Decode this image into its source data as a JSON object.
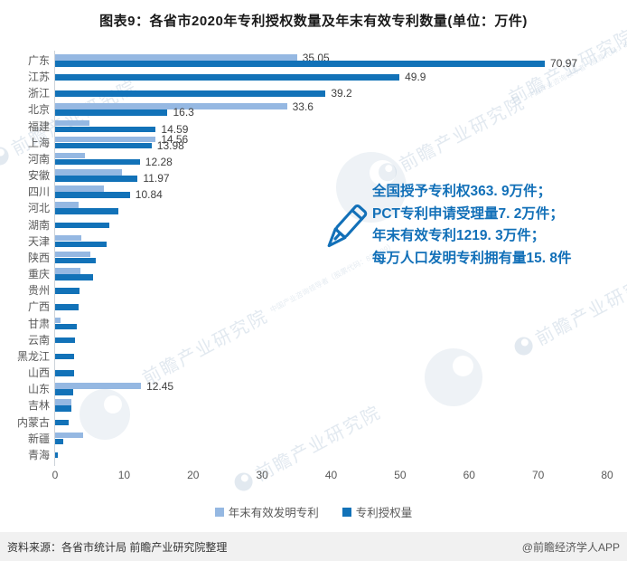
{
  "title": "图表9：各省市2020年专利授权数量及年末有效专利数量(单位：万件)",
  "annotation": {
    "lines": [
      "全国授予专利权363. 9万件；",
      "PCT专利申请受理量7. 2万件；",
      "年末有效专利1219. 3万件；",
      "每万人口发明专利拥有量15. 8件"
    ]
  },
  "legend": [
    {
      "label": "年末有效发明专利",
      "color": "#95b8e2"
    },
    {
      "label": "专利授权量",
      "color": "#1272b8"
    }
  ],
  "footer": {
    "source": "资料来源：各省市统计局 前瞻产业研究院整理",
    "credit": "@前瞻经济学人APP"
  },
  "watermark": {
    "text": "前瞻产业研究院",
    "subtext": "中国产业咨询领导者（股票代码：839599）"
  },
  "chart_data": {
    "type": "bar",
    "orientation": "horizontal",
    "title": "图表9：各省市2020年专利授权数量及年末有效专利数量(单位：万件)",
    "unit": "万件",
    "xlim": [
      0,
      80
    ],
    "xticks": [
      0,
      10,
      20,
      30,
      40,
      50,
      60,
      70,
      80
    ],
    "grid": false,
    "legend_position": "bottom",
    "series": [
      {
        "name": "年末有效发明专利",
        "color": "#95b8e2"
      },
      {
        "name": "专利授权量",
        "color": "#1272b8"
      }
    ],
    "rows": [
      {
        "name": "广东",
        "valid": 35.05,
        "granted": 70.97,
        "valid_label": "35.05",
        "granted_label": "70.97"
      },
      {
        "name": "江苏",
        "valid": null,
        "granted": 49.9,
        "valid_label": null,
        "granted_label": "49.9"
      },
      {
        "name": "浙江",
        "valid": null,
        "granted": 39.2,
        "valid_label": null,
        "granted_label": "39.2"
      },
      {
        "name": "北京",
        "valid": 33.6,
        "granted": 16.3,
        "valid_label": "33.6",
        "granted_label": "16.3"
      },
      {
        "name": "福建",
        "valid": 5.0,
        "granted": 14.59,
        "valid_label": null,
        "granted_label": "14.59"
      },
      {
        "name": "上海",
        "valid": 14.56,
        "granted": 13.98,
        "valid_label": "14.56",
        "granted_label": "13.98"
      },
      {
        "name": "河南",
        "valid": 4.3,
        "granted": 12.28,
        "valid_label": null,
        "granted_label": "12.28"
      },
      {
        "name": "安徽",
        "valid": 9.7,
        "granted": 11.97,
        "valid_label": null,
        "granted_label": "11.97"
      },
      {
        "name": "四川",
        "valid": 7.1,
        "granted": 10.84,
        "valid_label": null,
        "granted_label": "10.84"
      },
      {
        "name": "河北",
        "valid": 3.4,
        "granted": 9.2,
        "valid_label": null,
        "granted_label": null
      },
      {
        "name": "湖南",
        "valid": null,
        "granted": 7.9,
        "valid_label": null,
        "granted_label": null
      },
      {
        "name": "天津",
        "valid": 3.8,
        "granted": 7.5,
        "valid_label": null,
        "granted_label": null
      },
      {
        "name": "陕西",
        "valid": 5.1,
        "granted": 5.9,
        "valid_label": null,
        "granted_label": null
      },
      {
        "name": "重庆",
        "valid": 3.7,
        "granted": 5.5,
        "valid_label": null,
        "granted_label": null
      },
      {
        "name": "贵州",
        "valid": null,
        "granted": 3.5,
        "valid_label": null,
        "granted_label": null
      },
      {
        "name": "广西",
        "valid": null,
        "granted": 3.4,
        "valid_label": null,
        "granted_label": null
      },
      {
        "name": "甘肃",
        "valid": 0.8,
        "granted": 3.1,
        "valid_label": null,
        "granted_label": null
      },
      {
        "name": "云南",
        "valid": null,
        "granted": 2.9,
        "valid_label": null,
        "granted_label": null
      },
      {
        "name": "黑龙江",
        "valid": null,
        "granted": 2.8,
        "valid_label": null,
        "granted_label": null
      },
      {
        "name": "山西",
        "valid": null,
        "granted": 2.7,
        "valid_label": null,
        "granted_label": null
      },
      {
        "name": "山东",
        "valid": 12.45,
        "granted": 2.6,
        "valid_label": "12.45",
        "granted_label": null
      },
      {
        "name": "吉林",
        "valid": 2.3,
        "granted": 2.4,
        "valid_label": null,
        "granted_label": null
      },
      {
        "name": "内蒙古",
        "valid": null,
        "granted": 2.0,
        "valid_label": null,
        "granted_label": null
      },
      {
        "name": "新疆",
        "valid": 4.1,
        "granted": 1.2,
        "valid_label": null,
        "granted_label": null
      },
      {
        "name": "青海",
        "valid": null,
        "granted": 0.4,
        "valid_label": null,
        "granted_label": null
      }
    ]
  }
}
